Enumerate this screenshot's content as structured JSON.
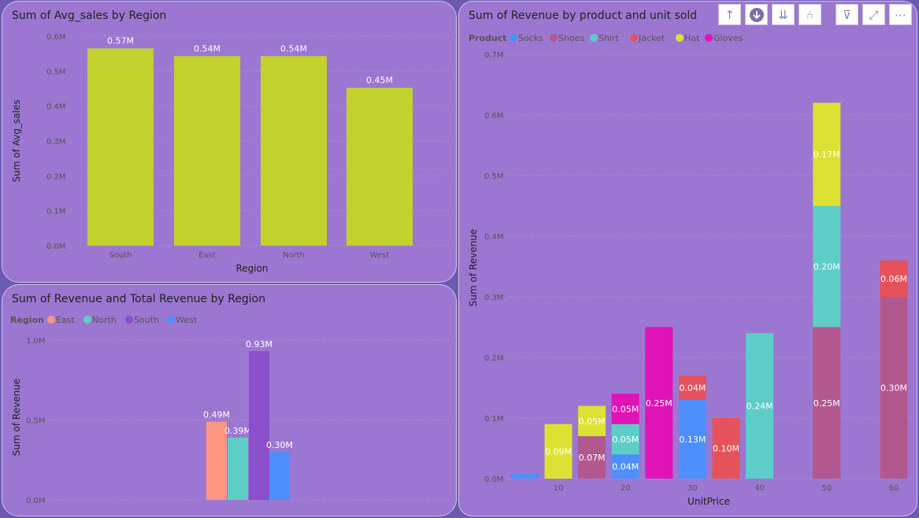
{
  "chart_data": [
    {
      "type": "bar",
      "title": "Sum of Avg_sales by Region",
      "xlabel": "Region",
      "ylabel": "Sum of Avg_sales",
      "categories": [
        "South",
        "East",
        "North",
        "West"
      ],
      "values": [
        0.565,
        0.543,
        0.543,
        0.452
      ],
      "data_labels": [
        "0.57M",
        "0.54M",
        "0.54M",
        "0.45M"
      ],
      "yticks": [
        0,
        0.1,
        0.2,
        0.3,
        0.4,
        0.5,
        0.6
      ],
      "ytick_labels": [
        "0.0M",
        "0.1M",
        "0.2M",
        "0.3M",
        "0.4M",
        "0.5M",
        "0.6M"
      ],
      "ylim": [
        0,
        0.6
      ],
      "color": "#c2d12e",
      "grid": true
    },
    {
      "type": "bar",
      "title": "Sum of Revenue and Total Revenue by Region",
      "ylabel": "Sum of Revenue",
      "legend_title": "Region",
      "legend_position": "top-left",
      "series": [
        {
          "name": "East",
          "value": 0.49,
          "label": "0.49M",
          "color": "#fd9583"
        },
        {
          "name": "North",
          "value": 0.39,
          "label": "0.39M",
          "color": "#5ecdc8"
        },
        {
          "name": "South",
          "value": 0.93,
          "label": "0.93M",
          "color": "#8a4fcb"
        },
        {
          "name": "West",
          "value": 0.3,
          "label": "0.30M",
          "color": "#4d8ffa"
        }
      ],
      "yticks": [
        0,
        0.5,
        1.0
      ],
      "ytick_labels": [
        "0.0M",
        "0.5M",
        "1.0M"
      ],
      "ylim": [
        0,
        1.0
      ],
      "grid": true
    },
    {
      "type": "bar",
      "stacked": true,
      "title": "Sum of Revenue by product and unit sold",
      "xlabel": "UnitPrice",
      "ylabel": "Sum of Revenue",
      "legend_title": "Product",
      "legend_position": "top-left",
      "legend": [
        {
          "name": "Socks",
          "color": "#4d8ffa"
        },
        {
          "name": "Shoes",
          "color": "#b3588f"
        },
        {
          "name": "Shirt",
          "color": "#5ecdc8"
        },
        {
          "name": "Jacket",
          "color": "#e5525b"
        },
        {
          "name": "Hat",
          "color": "#dbe233"
        },
        {
          "name": "Gloves",
          "color": "#e013b7"
        }
      ],
      "xticks": [
        10,
        20,
        30,
        40,
        50,
        60
      ],
      "yticks": [
        0,
        0.1,
        0.2,
        0.3,
        0.4,
        0.5,
        0.6,
        0.7
      ],
      "ytick_labels": [
        "0.0M",
        "0.1M",
        "0.2M",
        "0.3M",
        "0.4M",
        "0.5M",
        "0.6M",
        "0.7M"
      ],
      "ylim": [
        0,
        0.7
      ],
      "grid": true,
      "bars": [
        {
          "x": 5,
          "segments": [
            {
              "product": "Socks",
              "value": 0.008,
              "label": ""
            }
          ]
        },
        {
          "x": 10,
          "segments": [
            {
              "product": "Hat",
              "value": 0.09,
              "label": "0.09M"
            }
          ]
        },
        {
          "x": 15,
          "segments": [
            {
              "product": "Shoes",
              "value": 0.07,
              "label": "0.07M"
            },
            {
              "product": "Hat",
              "value": 0.05,
              "label": "0.05M"
            }
          ]
        },
        {
          "x": 20,
          "segments": [
            {
              "product": "Socks",
              "value": 0.04,
              "label": "0.04M"
            },
            {
              "product": "Shirt",
              "value": 0.05,
              "label": "0.05M"
            },
            {
              "product": "Gloves",
              "value": 0.05,
              "label": "0.05M"
            }
          ]
        },
        {
          "x": 25,
          "segments": [
            {
              "product": "Gloves",
              "value": 0.25,
              "label": "0.25M"
            }
          ]
        },
        {
          "x": 30,
          "segments": [
            {
              "product": "Socks",
              "value": 0.13,
              "label": "0.13M"
            },
            {
              "product": "Jacket",
              "value": 0.04,
              "label": "0.04M"
            }
          ]
        },
        {
          "x": 35,
          "segments": [
            {
              "product": "Jacket",
              "value": 0.1,
              "label": "0.10M"
            }
          ]
        },
        {
          "x": 40,
          "segments": [
            {
              "product": "Shirt",
              "value": 0.24,
              "label": "0.24M"
            }
          ]
        },
        {
          "x": 50,
          "segments": [
            {
              "product": "Shoes",
              "value": 0.25,
              "label": "0.25M"
            },
            {
              "product": "Shirt",
              "value": 0.2,
              "label": "0.20M"
            },
            {
              "product": "Hat",
              "value": 0.17,
              "label": "0.17M"
            }
          ]
        },
        {
          "x": 60,
          "segments": [
            {
              "product": "Shoes",
              "value": 0.3,
              "label": "0.30M"
            },
            {
              "product": "Jacket",
              "value": 0.06,
              "label": "0.06M"
            }
          ]
        }
      ]
    }
  ],
  "toolbar": {
    "icons": [
      "arrow-up-icon",
      "drill-down-icon",
      "double-arrow-down-icon",
      "expand-hierarchy-icon",
      "filter-icon",
      "focus-mode-icon",
      "more-options-icon"
    ],
    "up": "↑",
    "drill": "↓",
    "double_down": "⇊",
    "expand": "⑃",
    "filter": "⊽",
    "focus": "⤢",
    "more": "⋯"
  }
}
